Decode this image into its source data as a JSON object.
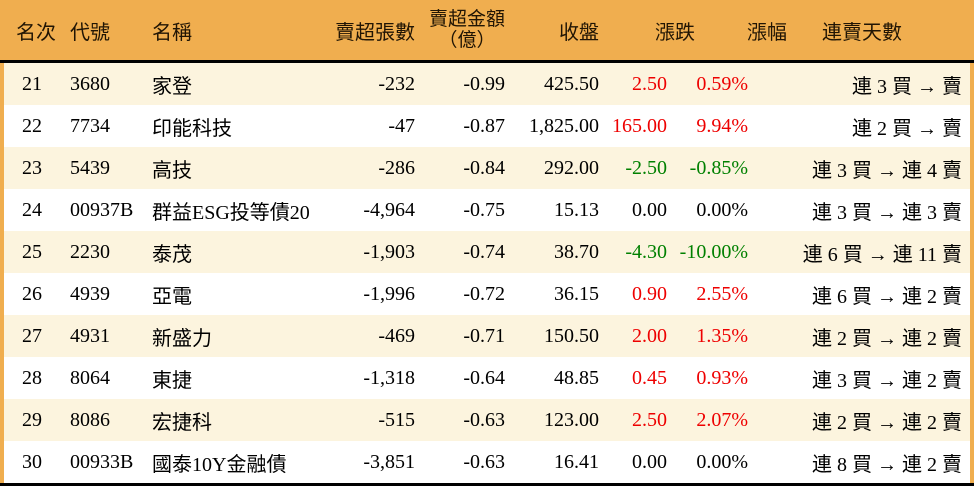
{
  "colors": {
    "header_bg": "#F0AE4F",
    "row_alt_bg": "#FCF4DE",
    "row_bg": "#FFFFFF",
    "divider": "#000000",
    "up_text": "#EE0000",
    "down_text": "#008000",
    "neutral_text": "#000000"
  },
  "table": {
    "headers": {
      "rank": "名次",
      "code": "代號",
      "name": "名稱",
      "sell_volume": "賣超張數",
      "sell_amount_line1": "賣超金額",
      "sell_amount_line2": "（億）",
      "close": "收盤",
      "change": "漲跌",
      "change_pct": "漲幅",
      "streak": "連賣天數"
    }
  },
  "chart_data": {
    "type": "table",
    "columns": [
      "名次",
      "代號",
      "名稱",
      "賣超張數",
      "賣超金額（億）",
      "收盤",
      "漲跌",
      "漲幅",
      "連賣天數"
    ],
    "rows": [
      {
        "rank": "21",
        "code": "3680",
        "name": "家登",
        "sell_volume": "-232",
        "sell_amount": "-0.99",
        "close": "425.50",
        "change": "2.50",
        "change_pct": "0.59%",
        "trend": "up",
        "streak": "連 3 買 → 賣"
      },
      {
        "rank": "22",
        "code": "7734",
        "name": "印能科技",
        "sell_volume": "-47",
        "sell_amount": "-0.87",
        "close": "1,825.00",
        "change": "165.00",
        "change_pct": "9.94%",
        "trend": "up",
        "streak": "連 2 買 → 賣"
      },
      {
        "rank": "23",
        "code": "5439",
        "name": "高技",
        "sell_volume": "-286",
        "sell_amount": "-0.84",
        "close": "292.00",
        "change": "-2.50",
        "change_pct": "-0.85%",
        "trend": "down",
        "streak": "連 3 買 → 連 4 賣"
      },
      {
        "rank": "24",
        "code": "00937B",
        "name": "群益ESG投等債20",
        "sell_volume": "-4,964",
        "sell_amount": "-0.75",
        "close": "15.13",
        "change": "0.00",
        "change_pct": "0.00%",
        "trend": "flat",
        "streak": "連 3 買 → 連 3 賣"
      },
      {
        "rank": "25",
        "code": "2230",
        "name": "泰茂",
        "sell_volume": "-1,903",
        "sell_amount": "-0.74",
        "close": "38.70",
        "change": "-4.30",
        "change_pct": "-10.00%",
        "trend": "down",
        "streak": "連 6 買 → 連 11 賣"
      },
      {
        "rank": "26",
        "code": "4939",
        "name": "亞電",
        "sell_volume": "-1,996",
        "sell_amount": "-0.72",
        "close": "36.15",
        "change": "0.90",
        "change_pct": "2.55%",
        "trend": "up",
        "streak": "連 6 買 → 連 2 賣"
      },
      {
        "rank": "27",
        "code": "4931",
        "name": "新盛力",
        "sell_volume": "-469",
        "sell_amount": "-0.71",
        "close": "150.50",
        "change": "2.00",
        "change_pct": "1.35%",
        "trend": "up",
        "streak": "連 2 買 → 連 2 賣"
      },
      {
        "rank": "28",
        "code": "8064",
        "name": "東捷",
        "sell_volume": "-1,318",
        "sell_amount": "-0.64",
        "close": "48.85",
        "change": "0.45",
        "change_pct": "0.93%",
        "trend": "up",
        "streak": "連 3 買 → 連 2 賣"
      },
      {
        "rank": "29",
        "code": "8086",
        "name": "宏捷科",
        "sell_volume": "-515",
        "sell_amount": "-0.63",
        "close": "123.00",
        "change": "2.50",
        "change_pct": "2.07%",
        "trend": "up",
        "streak": "連 2 買 → 連 2 賣"
      },
      {
        "rank": "30",
        "code": "00933B",
        "name": "國泰10Y金融債",
        "sell_volume": "-3,851",
        "sell_amount": "-0.63",
        "close": "16.41",
        "change": "0.00",
        "change_pct": "0.00%",
        "trend": "flat",
        "streak": "連 8 買 → 連 2 賣"
      }
    ]
  }
}
